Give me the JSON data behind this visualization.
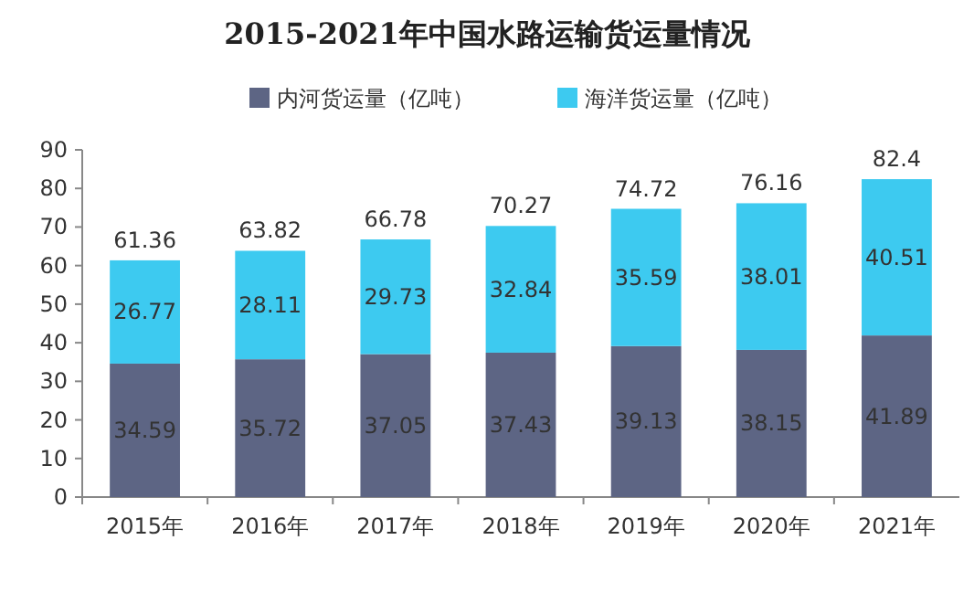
{
  "chart_data": {
    "type": "bar",
    "title": "2015-2021年中国水路运输货运量情况",
    "categories": [
      "2015年",
      "2016年",
      "2017年",
      "2018年",
      "2019年",
      "2020年",
      "2021年"
    ],
    "stacked": true,
    "data_labels": true,
    "legend": "top",
    "ylim": [
      0,
      90
    ],
    "yticks": [
      0,
      10,
      20,
      30,
      40,
      50,
      60,
      70,
      80,
      90
    ],
    "series": [
      {
        "name": "内河货运量（亿吨）",
        "color": "#5d6584",
        "values": [
          34.59,
          35.72,
          37.05,
          37.43,
          39.13,
          38.15,
          41.89
        ]
      },
      {
        "name": "海洋货运量（亿吨）",
        "color": "#3dcaf0",
        "values": [
          26.77,
          28.11,
          29.73,
          32.84,
          35.59,
          38.01,
          40.51
        ]
      }
    ],
    "totals": [
      "61.36",
      "63.82",
      "66.78",
      "70.27",
      "74.72",
      "76.16",
      "82.4"
    ]
  }
}
